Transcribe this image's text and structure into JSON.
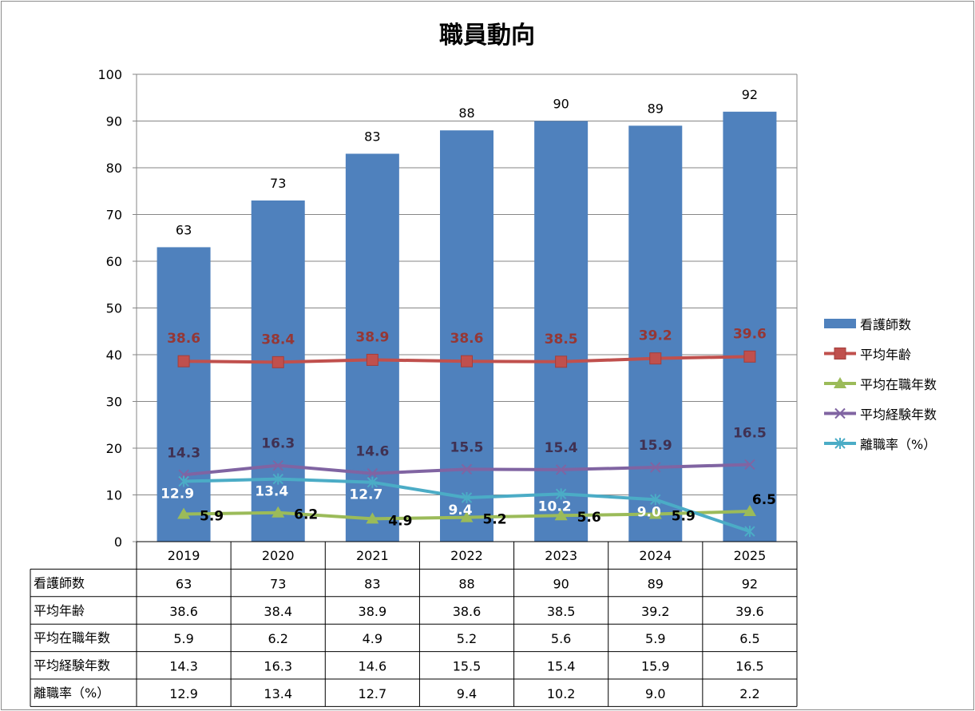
{
  "chart_data": {
    "type": "bar",
    "title": "職員動向",
    "categories": [
      "2019",
      "2020",
      "2021",
      "2022",
      "2023",
      "2024",
      "2025"
    ],
    "ylim": [
      0,
      100
    ],
    "yticks": [
      0,
      10,
      20,
      30,
      40,
      50,
      60,
      70,
      80,
      90,
      100
    ],
    "grid": true,
    "legend_position": "right",
    "series": [
      {
        "name": "看護師数",
        "type": "bar",
        "color": "#4f81bd",
        "values": [
          63,
          73,
          83,
          88,
          90,
          89,
          92
        ],
        "labels": [
          "63",
          "73",
          "83",
          "88",
          "90",
          "89",
          "92"
        ]
      },
      {
        "name": "平均年齢",
        "type": "line",
        "marker": "square",
        "color": "#c0504d",
        "label_color": "#953735",
        "values": [
          38.6,
          38.4,
          38.9,
          38.6,
          38.5,
          39.2,
          39.6
        ],
        "labels": [
          "38.6",
          "38.4",
          "38.9",
          "38.6",
          "38.5",
          "39.2",
          "39.6"
        ]
      },
      {
        "name": "平均在職年数",
        "type": "line",
        "marker": "triangle",
        "color": "#9bbb59",
        "label_color": "#000000",
        "values": [
          5.9,
          6.2,
          4.9,
          5.2,
          5.6,
          5.9,
          6.5
        ],
        "labels": [
          "5.9",
          "6.2",
          "4.9",
          "5.2",
          "5.6",
          "5.9",
          "6.5"
        ]
      },
      {
        "name": "平均経験年数",
        "type": "line",
        "marker": "x",
        "color": "#8064a2",
        "label_color": "#403152",
        "values": [
          14.3,
          16.3,
          14.6,
          15.5,
          15.4,
          15.9,
          16.5
        ],
        "labels": [
          "14.3",
          "16.3",
          "14.6",
          "15.5",
          "15.4",
          "15.9",
          "16.5"
        ]
      },
      {
        "name": "離職率（%）",
        "type": "line",
        "marker": "star",
        "color": "#4bacc6",
        "label_color": "#ffffff",
        "values": [
          12.9,
          13.4,
          12.7,
          9.4,
          10.2,
          9.0,
          2.2
        ],
        "labels": [
          "12.9",
          "13.4",
          "12.7",
          "9.4",
          "10.2",
          "9.0",
          "2.2"
        ]
      }
    ],
    "table": {
      "rows": [
        {
          "name": "看護師数",
          "cells": [
            "63",
            "73",
            "83",
            "88",
            "90",
            "89",
            "92"
          ]
        },
        {
          "name": "平均年齢",
          "cells": [
            "38.6",
            "38.4",
            "38.9",
            "38.6",
            "38.5",
            "39.2",
            "39.6"
          ]
        },
        {
          "name": "平均在職年数",
          "cells": [
            "5.9",
            "6.2",
            "4.9",
            "5.2",
            "5.6",
            "5.9",
            "6.5"
          ]
        },
        {
          "name": "平均経験年数",
          "cells": [
            "14.3",
            "16.3",
            "14.6",
            "15.5",
            "15.4",
            "15.9",
            "16.5"
          ]
        },
        {
          "name": "離職率（%）",
          "cells": [
            "12.9",
            "13.4",
            "12.7",
            "9.4",
            "10.2",
            "9.0",
            "2.2"
          ]
        }
      ]
    }
  }
}
